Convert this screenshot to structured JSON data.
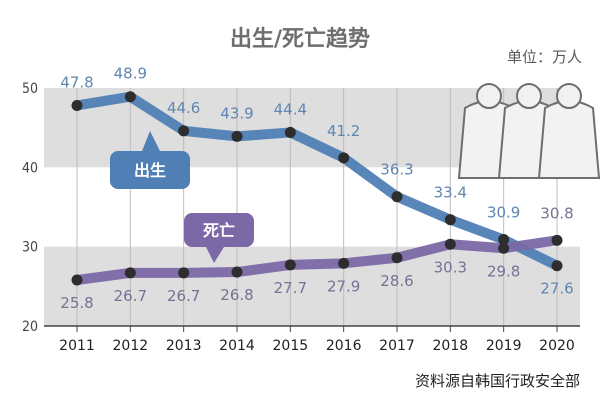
{
  "chart_data": {
    "type": "line",
    "title": "出生/死亡趋势",
    "unit": "单位：万人",
    "source": "资料源自韩国行政安全部",
    "categories": [
      "2011",
      "2012",
      "2013",
      "2014",
      "2015",
      "2016",
      "2017",
      "2018",
      "2019",
      "2020"
    ],
    "yticks": [
      "50",
      "40",
      "30",
      "20"
    ],
    "ylim": [
      20,
      50
    ],
    "series": [
      {
        "name": "出生",
        "values": [
          47.8,
          48.9,
          44.6,
          43.9,
          44.4,
          41.2,
          36.3,
          33.4,
          30.9,
          27.6
        ],
        "labels": [
          "47.8",
          "48.9",
          "44.6",
          "43.9",
          "44.4",
          "41.2",
          "36.3",
          "33.4",
          "30.9",
          "27.6"
        ],
        "color": "#4f7fb5",
        "label_color": "#5f86b1"
      },
      {
        "name": "死亡",
        "values": [
          25.8,
          26.7,
          26.7,
          26.8,
          27.7,
          27.9,
          28.6,
          30.3,
          29.8,
          30.8
        ],
        "labels": [
          "25.8",
          "26.7",
          "26.7",
          "26.8",
          "27.7",
          "27.9",
          "28.6",
          "30.3",
          "29.8",
          "30.8"
        ],
        "color": "#7b68a6",
        "label_color": "#7a6f95"
      }
    ],
    "band_color": "#dedede",
    "legend": "callouts near lines",
    "icon": "people-icon"
  }
}
